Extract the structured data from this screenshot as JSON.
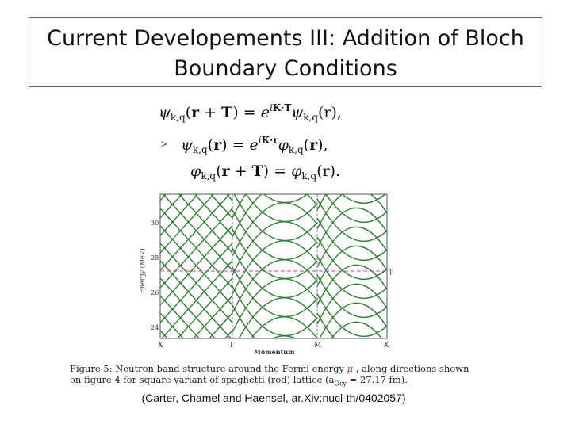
{
  "title": {
    "line1": "Current Developements III: Addition of Bloch",
    "line2": "Boundary Conditions"
  },
  "bullet": ">",
  "equations": {
    "eq1": "ψk,q(r + T) = e^{iK·T} ψk,q(r),",
    "eq2": "ψk,q(r) = e^{iK·r} φk,q(r),",
    "eq3": "φk,q(r + T) = φk,q(r)."
  },
  "figure": {
    "ylabel": "Energy (MeV)",
    "xlabel": "Momentum",
    "yticks": [
      "30",
      "28",
      "26",
      "24"
    ],
    "xticks": [
      "X",
      "Γ",
      "M",
      "X"
    ],
    "fermi_label": "μ",
    "band_color": "#2e7d32",
    "fermi_color": "#c040c0"
  },
  "caption": {
    "part1": "Figure 5:  Neutron band structure around the Fermi energy ",
    "mu": "μ",
    "part2": " , along directions shown",
    "line2": "on figure 4 for square variant of spaghetti (rod) lattice (a",
    "sub": "Ocy",
    "line2b": " = 27.17  fm)."
  },
  "citation": "(Carter, Chamel and Haensel, ar.Xiv:nucl-th/0402057)"
}
